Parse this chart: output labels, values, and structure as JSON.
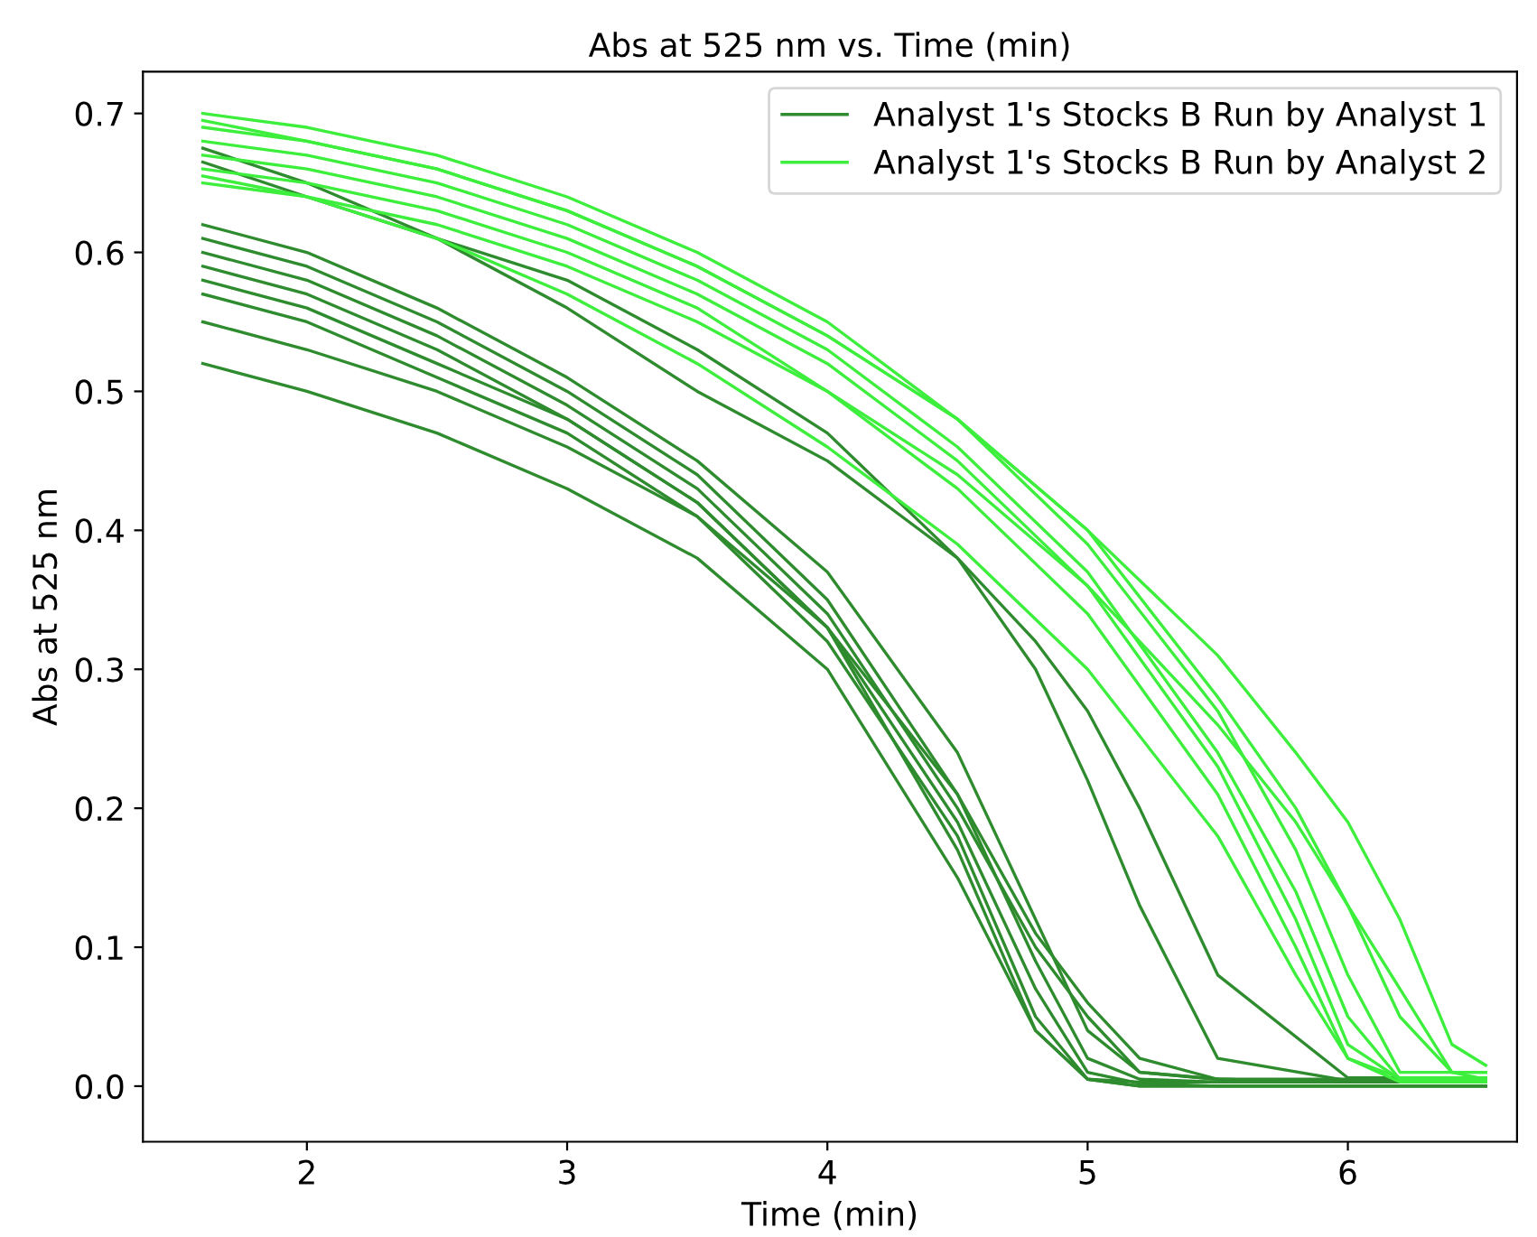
{
  "chart_data": {
    "type": "line",
    "title": "Abs at 525 nm vs. Time (min)",
    "xlabel": "Time (min)",
    "ylabel": "Abs at 525 nm",
    "xlim": [
      1.37,
      6.65
    ],
    "xticks": [
      2,
      3,
      4,
      5,
      6
    ],
    "ylim": [
      -0.04,
      0.73
    ],
    "yticks": [
      {
        "value": 0,
        "label": "0.0"
      },
      0.1,
      0.2,
      0.3,
      0.4,
      0.5,
      0.6,
      0.7
    ],
    "legend": "top right",
    "grid": false,
    "marker": "none",
    "line_style": "solid",
    "series": [
      {
        "name": "Analyst 1's Stocks B Run by Analyst 1",
        "color": "#2e8b2e",
        "x": [
          1.6,
          2,
          2.5,
          3,
          3.5,
          4,
          4.5,
          4.8,
          5.0,
          5.2,
          5.5,
          6,
          6.53
        ],
        "values": [
          0.62,
          0.6,
          0.56,
          0.51,
          0.45,
          0.37,
          0.24,
          0.12,
          0.04,
          0.01,
          0.005,
          0.003,
          0.003
        ]
      },
      {
        "color": "#2e8b2e",
        "x": [
          1.6,
          2,
          2.5,
          3,
          3.5,
          4,
          4.5,
          4.8,
          5.0,
          5.2,
          5.5,
          6,
          6.53
        ],
        "values": [
          0.61,
          0.59,
          0.55,
          0.5,
          0.44,
          0.35,
          0.21,
          0.09,
          0.02,
          0.005,
          0.003,
          0.003,
          0.003
        ]
      },
      {
        "color": "#2e8b2e",
        "x": [
          1.6,
          2,
          2.5,
          3,
          3.5,
          4,
          4.5,
          4.8,
          5.0,
          5.2,
          5.5,
          6,
          6.53
        ],
        "values": [
          0.6,
          0.58,
          0.54,
          0.49,
          0.43,
          0.34,
          0.2,
          0.1,
          0.05,
          0.01,
          0.005,
          0.005,
          0.005
        ]
      },
      {
        "color": "#2e8b2e",
        "x": [
          1.6,
          2,
          2.5,
          3,
          3.5,
          4,
          4.5,
          4.8,
          5.0,
          5.2,
          5.5,
          6,
          6.53
        ],
        "values": [
          0.58,
          0.56,
          0.52,
          0.48,
          0.42,
          0.33,
          0.19,
          0.07,
          0.01,
          0.002,
          0.0,
          0.0,
          0.0
        ]
      },
      {
        "color": "#2e8b2e",
        "x": [
          1.6,
          2,
          2.5,
          3,
          3.5,
          4,
          4.5,
          4.8,
          5.0,
          5.2,
          5.5,
          6,
          6.53
        ],
        "values": [
          0.57,
          0.55,
          0.51,
          0.47,
          0.41,
          0.32,
          0.18,
          0.05,
          0.005,
          0.0,
          0.0,
          0.0,
          0.0
        ]
      },
      {
        "color": "#2e8b2e",
        "x": [
          1.6,
          2,
          2.5,
          3,
          3.5,
          4,
          4.5,
          4.8,
          5.0,
          5.2,
          5.5,
          6,
          6.53
        ],
        "values": [
          0.55,
          0.53,
          0.5,
          0.46,
          0.41,
          0.33,
          0.21,
          0.11,
          0.06,
          0.02,
          0.005,
          0.003,
          0.003
        ]
      },
      {
        "color": "#2e8b2e",
        "x": [
          1.6,
          2,
          2.5,
          3,
          3.5,
          4,
          4.5,
          4.8,
          5.0,
          5.2,
          5.5,
          6,
          6.53
        ],
        "values": [
          0.52,
          0.5,
          0.47,
          0.43,
          0.38,
          0.3,
          0.15,
          0.04,
          0.005,
          0.0,
          0.0,
          0.0,
          0.0
        ]
      },
      {
        "color": "#2e8b2e",
        "x": [
          1.6,
          2,
          2.5,
          3,
          3.5,
          4,
          4.5,
          4.8,
          5.0,
          5.2,
          5.5,
          6,
          6.53
        ],
        "values": [
          0.59,
          0.57,
          0.53,
          0.48,
          0.42,
          0.33,
          0.17,
          0.04,
          0.005,
          0.003,
          0.003,
          0.003,
          0.003
        ]
      },
      {
        "color": "#2e8b2e",
        "x": [
          1.6,
          2,
          2.5,
          3,
          3.5,
          4,
          4.5,
          4.8,
          5.0,
          5.2,
          5.5,
          6,
          6.53
        ],
        "values": [
          0.675,
          0.65,
          0.61,
          0.56,
          0.5,
          0.45,
          0.38,
          0.32,
          0.27,
          0.2,
          0.08,
          0.006,
          0.006
        ]
      },
      {
        "color": "#2e8b2e",
        "x": [
          1.6,
          2,
          2.5,
          3,
          3.5,
          4,
          4.5,
          4.8,
          5.0,
          5.2,
          5.5,
          6,
          6.53
        ],
        "values": [
          0.665,
          0.64,
          0.61,
          0.58,
          0.53,
          0.47,
          0.38,
          0.3,
          0.22,
          0.13,
          0.02,
          0.004,
          0.004
        ]
      },
      {
        "name": "Analyst 1's Stocks B Run by Analyst 2",
        "color": "#3dee3d",
        "x": [
          1.6,
          2,
          2.5,
          3,
          3.5,
          4,
          4.5,
          5,
          5.5,
          5.8,
          6,
          6.2,
          6.4,
          6.53
        ],
        "values": [
          0.7,
          0.69,
          0.67,
          0.64,
          0.6,
          0.55,
          0.48,
          0.39,
          0.27,
          0.17,
          0.08,
          0.01,
          0.01,
          0.01
        ]
      },
      {
        "color": "#3dee3d",
        "x": [
          1.6,
          2,
          2.5,
          3,
          3.5,
          4,
          4.5,
          5,
          5.5,
          5.8,
          6,
          6.2,
          6.4,
          6.53
        ],
        "values": [
          0.69,
          0.68,
          0.66,
          0.63,
          0.59,
          0.54,
          0.48,
          0.4,
          0.28,
          0.2,
          0.13,
          0.05,
          0.01,
          0.01
        ]
      },
      {
        "color": "#3dee3d",
        "x": [
          1.6,
          2,
          2.5,
          3,
          3.5,
          4,
          4.5,
          5,
          5.5,
          5.8,
          6,
          6.2,
          6.4,
          6.53
        ],
        "values": [
          0.68,
          0.67,
          0.65,
          0.62,
          0.58,
          0.53,
          0.46,
          0.37,
          0.24,
          0.14,
          0.05,
          0.005,
          0.005,
          0.005
        ]
      },
      {
        "color": "#3dee3d",
        "x": [
          1.6,
          2,
          2.5,
          3,
          3.5,
          4,
          4.5,
          5,
          5.5,
          5.8,
          6,
          6.2,
          6.4,
          6.53
        ],
        "values": [
          0.67,
          0.66,
          0.64,
          0.61,
          0.57,
          0.52,
          0.45,
          0.36,
          0.23,
          0.12,
          0.03,
          0.005,
          0.005,
          0.005
        ]
      },
      {
        "color": "#3dee3d",
        "x": [
          1.6,
          2,
          2.5,
          3,
          3.5,
          4,
          4.5,
          5,
          5.5,
          5.8,
          6,
          6.2,
          6.4,
          6.53
        ],
        "values": [
          0.66,
          0.65,
          0.63,
          0.6,
          0.56,
          0.5,
          0.43,
          0.34,
          0.21,
          0.1,
          0.02,
          0.003,
          0.003,
          0.003
        ]
      },
      {
        "color": "#3dee3d",
        "x": [
          1.6,
          2,
          2.5,
          3,
          3.5,
          4,
          4.5,
          5,
          5.5,
          5.8,
          6,
          6.2,
          6.4,
          6.53
        ],
        "values": [
          0.65,
          0.64,
          0.62,
          0.59,
          0.55,
          0.5,
          0.44,
          0.36,
          0.26,
          0.19,
          0.13,
          0.07,
          0.01,
          0.005
        ]
      },
      {
        "color": "#3dee3d",
        "x": [
          1.6,
          2,
          2.5,
          3,
          3.5,
          4,
          4.5,
          5,
          5.5,
          5.8,
          6,
          6.2,
          6.4,
          6.53
        ],
        "values": [
          0.695,
          0.68,
          0.66,
          0.63,
          0.59,
          0.54,
          0.48,
          0.4,
          0.31,
          0.24,
          0.19,
          0.12,
          0.03,
          0.015
        ]
      },
      {
        "color": "#3dee3d",
        "x": [
          1.6,
          2,
          2.5,
          3,
          3.5,
          4,
          4.5,
          5,
          5.5,
          5.8,
          6,
          6.2,
          6.4,
          6.53
        ],
        "values": [
          0.655,
          0.64,
          0.61,
          0.57,
          0.52,
          0.46,
          0.39,
          0.3,
          0.18,
          0.08,
          0.02,
          0.006,
          0.006,
          0.006
        ]
      }
    ]
  }
}
